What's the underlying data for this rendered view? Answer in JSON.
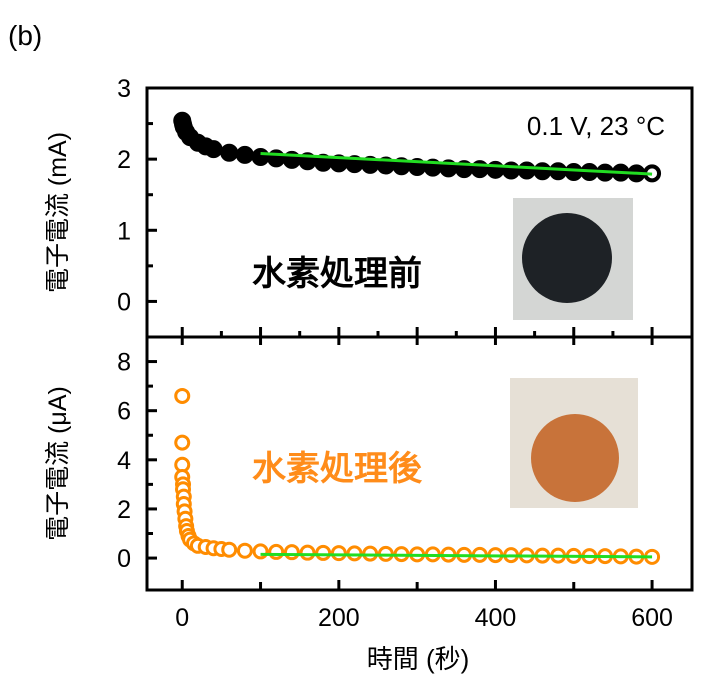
{
  "panel_label": "(b)",
  "chart_data": [
    {
      "type": "scatter",
      "panel": "top",
      "ylabel": "電子電流 (mA)",
      "xlim": [
        -45,
        651
      ],
      "ylim": [
        -0.5,
        3
      ],
      "yticks": [
        0,
        1,
        2,
        3
      ],
      "yminor": [
        0.5,
        1.5,
        2.5
      ],
      "xticks_major": [
        0,
        100,
        200,
        300,
        400,
        500,
        600
      ],
      "xticks_minor": [
        50,
        150,
        250,
        350,
        450,
        550
      ],
      "grid": false,
      "annotation": "0.1 V, 23 °C",
      "label": "水素処理前",
      "label_color": "#000000",
      "marker_color": "#000000",
      "fit_color": "#22dd22",
      "points": [
        [
          0,
          2.54
        ],
        [
          1,
          2.49
        ],
        [
          2,
          2.45
        ],
        [
          5,
          2.38
        ],
        [
          10,
          2.31
        ],
        [
          20,
          2.23
        ],
        [
          30,
          2.18
        ],
        [
          40,
          2.14
        ],
        [
          60,
          2.09
        ],
        [
          80,
          2.06
        ],
        [
          100,
          2.03
        ],
        [
          120,
          2.01
        ],
        [
          140,
          1.99
        ],
        [
          160,
          1.97
        ],
        [
          180,
          1.95
        ],
        [
          200,
          1.94
        ],
        [
          220,
          1.93
        ],
        [
          240,
          1.92
        ],
        [
          260,
          1.91
        ],
        [
          280,
          1.9
        ],
        [
          300,
          1.89
        ],
        [
          320,
          1.88
        ],
        [
          340,
          1.87
        ],
        [
          360,
          1.86
        ],
        [
          380,
          1.86
        ],
        [
          400,
          1.85
        ],
        [
          420,
          1.84
        ],
        [
          440,
          1.84
        ],
        [
          460,
          1.83
        ],
        [
          480,
          1.83
        ],
        [
          500,
          1.82
        ],
        [
          520,
          1.82
        ],
        [
          540,
          1.81
        ],
        [
          560,
          1.81
        ],
        [
          580,
          1.8
        ],
        [
          600,
          1.8
        ]
      ],
      "fit": [
        [
          100,
          2.08
        ],
        [
          600,
          1.79
        ]
      ],
      "inset": {
        "background": "#d4d6d4",
        "disk_color": "#1e2226"
      }
    },
    {
      "type": "scatter",
      "panel": "bottom",
      "ylabel": "電子電流 (μA)",
      "xlabel": "時間 (秒)",
      "xlim": [
        -45,
        651
      ],
      "ylim": [
        -1.3,
        9
      ],
      "yticks": [
        0,
        2,
        4,
        6,
        8
      ],
      "yminor": [
        1,
        3,
        5,
        7
      ],
      "xticks": [
        0,
        200,
        400,
        600
      ],
      "xticks_minor": [
        100,
        300,
        500
      ],
      "grid": false,
      "label": "水素処理後",
      "label_color": "#ff8c1a",
      "marker_color": "#ff8c00",
      "fit_color": "#22dd22",
      "points": [
        [
          0,
          6.6
        ],
        [
          0,
          4.7
        ],
        [
          0,
          3.8
        ],
        [
          0,
          3.3
        ],
        [
          1,
          3.0
        ],
        [
          1,
          2.8
        ],
        [
          2,
          2.5
        ],
        [
          2,
          2.2
        ],
        [
          3,
          1.9
        ],
        [
          4,
          1.6
        ],
        [
          5,
          1.3
        ],
        [
          6,
          1.1
        ],
        [
          8,
          0.9
        ],
        [
          10,
          0.75
        ],
        [
          15,
          0.6
        ],
        [
          20,
          0.5
        ],
        [
          30,
          0.45
        ],
        [
          40,
          0.4
        ],
        [
          50,
          0.37
        ],
        [
          60,
          0.34
        ],
        [
          80,
          0.3
        ],
        [
          100,
          0.27
        ],
        [
          120,
          0.25
        ],
        [
          140,
          0.24
        ],
        [
          160,
          0.22
        ],
        [
          180,
          0.21
        ],
        [
          200,
          0.2
        ],
        [
          220,
          0.19
        ],
        [
          240,
          0.18
        ],
        [
          260,
          0.17
        ],
        [
          280,
          0.16
        ],
        [
          300,
          0.15
        ],
        [
          320,
          0.15
        ],
        [
          340,
          0.14
        ],
        [
          360,
          0.13
        ],
        [
          380,
          0.13
        ],
        [
          400,
          0.12
        ],
        [
          420,
          0.12
        ],
        [
          440,
          0.11
        ],
        [
          460,
          0.1
        ],
        [
          480,
          0.1
        ],
        [
          500,
          0.09
        ],
        [
          520,
          0.08
        ],
        [
          540,
          0.08
        ],
        [
          560,
          0.07
        ],
        [
          580,
          0.06
        ],
        [
          600,
          0.05
        ]
      ],
      "fit": [
        [
          100,
          0.15
        ],
        [
          600,
          0.05
        ]
      ],
      "inset": {
        "background": "#e6e0d6",
        "disk_color": "#c8733a"
      }
    }
  ]
}
